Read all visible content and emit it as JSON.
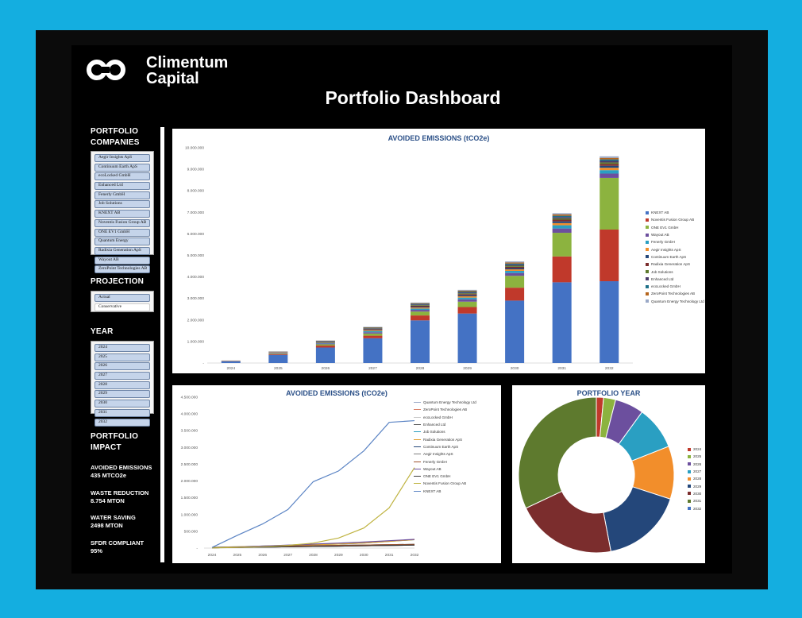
{
  "header": {
    "brand_line1": "Climentum",
    "brand_line2": "Capital",
    "title": "Portfolio Dashboard"
  },
  "sidebar": {
    "companies_title_1": "PORTFOLIO",
    "companies_title_2": "COMPANIES",
    "companies": [
      "Aegir Insights ApS",
      "Continuum Earth ApS",
      "ecoLocked GmbH",
      "Enhanced Ltd",
      "Fenerly GmbH",
      "Job Solutions",
      "KNEXT AB",
      "Noventis Fusion Group AB",
      "ONE EV1 GmbH",
      "Quantum Energy",
      "Radixia Generation ApS",
      "Wayout AB",
      "ZeroPoint Technologies AB"
    ],
    "projection_title": "PROJECTION",
    "projection_options": [
      {
        "label": "Actual",
        "selected": true
      },
      {
        "label": "Conservative",
        "selected": false
      }
    ],
    "year_title": "YEAR",
    "years": [
      "2024",
      "2025",
      "2026",
      "2027",
      "2028",
      "2029",
      "2030",
      "2031",
      "2032"
    ],
    "impact_title_1": "PORTFOLIO",
    "impact_title_2": "IMPACT",
    "metrics": [
      {
        "label": "AVOIDED EMISSIONS",
        "value": "435 MTCO2e"
      },
      {
        "label": "WASTE REDUCTION",
        "value": "8.754 MTON"
      },
      {
        "label": "WATER SAVING",
        "value": "2498 MTON"
      },
      {
        "label": "SFDR COMPLIANT",
        "value": "95%"
      }
    ]
  },
  "chart_data": [
    {
      "type": "bar",
      "stacked": true,
      "title": "AVOIDED EMISSIONS (tCO2e)",
      "categories": [
        "2024",
        "2025",
        "2026",
        "2027",
        "2028",
        "2029",
        "2030",
        "2031",
        "2032"
      ],
      "y_ticks": [
        "-",
        "1.000.000",
        "2.000.000",
        "3.000.000",
        "4.000.000",
        "5.000.000",
        "6.000.000",
        "7.000.000",
        "8.000.000",
        "9.000.000",
        "10.000.000"
      ],
      "ylim": [
        0,
        10000000
      ],
      "legend_position": "right",
      "series": [
        {
          "name": "KNEXT AB",
          "color": "#4472c4",
          "values": [
            80000,
            380000,
            720000,
            1150000,
            1980000,
            2300000,
            2900000,
            3750000,
            3800000
          ]
        },
        {
          "name": "Noventis Fusion Group AB",
          "color": "#c0392b",
          "values": [
            10000,
            40000,
            90000,
            120000,
            230000,
            300000,
            600000,
            1200000,
            2400000
          ]
        },
        {
          "name": "ONE EV1 GmbH",
          "color": "#8cb33f",
          "values": [
            5000,
            30000,
            60000,
            100000,
            180000,
            250000,
            550000,
            1100000,
            2400000
          ]
        },
        {
          "name": "Wayout AB",
          "color": "#6c4f9e",
          "values": [
            5000,
            20000,
            40000,
            60000,
            80000,
            110000,
            130000,
            200000,
            200000
          ]
        },
        {
          "name": "Fenerly GmbH",
          "color": "#2a9fc2",
          "values": [
            3000,
            15000,
            30000,
            50000,
            60000,
            80000,
            100000,
            150000,
            160000
          ]
        },
        {
          "name": "Aegir Insights ApS",
          "color": "#f28e2b",
          "values": [
            3000,
            10000,
            20000,
            40000,
            50000,
            60000,
            70000,
            100000,
            110000
          ]
        },
        {
          "name": "Continuum Earth ApS",
          "color": "#24477a",
          "values": [
            2000,
            10000,
            20000,
            30000,
            40000,
            50000,
            60000,
            80000,
            90000
          ]
        },
        {
          "name": "Radixia Generation ApS",
          "color": "#7b2d2d",
          "values": [
            2000,
            10000,
            20000,
            30000,
            40000,
            50000,
            60000,
            80000,
            90000
          ]
        },
        {
          "name": "Job Solutions",
          "color": "#5e7a2e",
          "values": [
            1000,
            5000,
            10000,
            20000,
            30000,
            40000,
            50000,
            60000,
            70000
          ]
        },
        {
          "name": "Enhanced Ltd",
          "color": "#4b3a6a",
          "values": [
            1000,
            5000,
            10000,
            20000,
            30000,
            40000,
            50000,
            60000,
            70000
          ]
        },
        {
          "name": "ecoLocked GmbH",
          "color": "#1e7088",
          "values": [
            1000,
            5000,
            10000,
            20000,
            30000,
            40000,
            50000,
            60000,
            70000
          ]
        },
        {
          "name": "ZeroPoint Technologies AB",
          "color": "#b5651d",
          "values": [
            1000,
            5000,
            10000,
            20000,
            30000,
            40000,
            50000,
            60000,
            70000
          ]
        },
        {
          "name": "Quantum Energy Technology Ltd",
          "color": "#9aa9c7",
          "values": [
            1000,
            5000,
            10000,
            20000,
            30000,
            40000,
            50000,
            60000,
            70000
          ]
        }
      ]
    },
    {
      "type": "line",
      "title": "AVOIDED EMISSIONS (tCO2e)",
      "categories": [
        "2024",
        "2025",
        "2026",
        "2027",
        "2028",
        "2029",
        "2030",
        "2031",
        "2032"
      ],
      "y_ticks": [
        "-",
        "500.000",
        "1.000.000",
        "1.500.000",
        "2.000.000",
        "2.500.000",
        "3.000.000",
        "3.500.000",
        "4.000.000",
        "4.500.000"
      ],
      "ylim": [
        0,
        4500000
      ],
      "legend_position": "top-right",
      "series": [
        {
          "name": "Quantum Energy Technology Ltd",
          "color": "#9aa9c7",
          "values": [
            10000,
            20000,
            30000,
            40000,
            50000,
            60000,
            70000,
            80000,
            90000
          ]
        },
        {
          "name": "ZeroPoint Technologies AB",
          "color": "#d9826a",
          "values": [
            10000,
            20000,
            30000,
            40000,
            50000,
            60000,
            70000,
            80000,
            90000
          ]
        },
        {
          "name": "ecoLocked GmbH",
          "color": "#c9c9c9",
          "values": [
            10000,
            20000,
            30000,
            40000,
            50000,
            60000,
            70000,
            80000,
            90000
          ]
        },
        {
          "name": "Enhanced Ltd",
          "color": "#5b5b5b",
          "values": [
            10000,
            20000,
            30000,
            40000,
            50000,
            60000,
            70000,
            80000,
            90000
          ]
        },
        {
          "name": "Job Solutions",
          "color": "#2a9fc2",
          "values": [
            20000,
            40000,
            60000,
            80000,
            100000,
            120000,
            150000,
            200000,
            250000
          ]
        },
        {
          "name": "Radixia Generation ApS",
          "color": "#e0a030",
          "values": [
            20000,
            40000,
            60000,
            80000,
            100000,
            120000,
            150000,
            200000,
            250000
          ]
        },
        {
          "name": "Continuum Earth ApS",
          "color": "#24477a",
          "values": [
            10000,
            20000,
            40000,
            60000,
            70000,
            80000,
            90000,
            100000,
            110000
          ]
        },
        {
          "name": "Aegir Insights ApS",
          "color": "#7f7f7f",
          "values": [
            10000,
            20000,
            40000,
            60000,
            70000,
            80000,
            90000,
            100000,
            110000
          ]
        },
        {
          "name": "Fenerly GmbH",
          "color": "#a0522d",
          "values": [
            10000,
            20000,
            40000,
            60000,
            70000,
            80000,
            90000,
            100000,
            110000
          ]
        },
        {
          "name": "Wayout AB",
          "color": "#6c4f9e",
          "values": [
            10000,
            30000,
            60000,
            90000,
            120000,
            150000,
            180000,
            220000,
            260000
          ]
        },
        {
          "name": "ONE EV1 GmbH",
          "color": "#3d3d3d",
          "values": [
            10000,
            20000,
            30000,
            40000,
            50000,
            60000,
            70000,
            80000,
            90000
          ]
        },
        {
          "name": "Noventis Fusion Group AB",
          "color": "#bfb340",
          "values": [
            5000,
            20000,
            40000,
            80000,
            150000,
            300000,
            600000,
            1200000,
            2400000
          ]
        },
        {
          "name": "KNEXT AB",
          "color": "#5b84c4",
          "values": [
            20000,
            380000,
            720000,
            1150000,
            1980000,
            2300000,
            2900000,
            3750000,
            3800000
          ]
        }
      ]
    },
    {
      "type": "pie",
      "donut": true,
      "title": "PORTFOLIO YEAR",
      "legend_position": "right",
      "labels": [
        "2024",
        "2025",
        "2026",
        "2027",
        "2028",
        "2029",
        "2030",
        "2031",
        "2032"
      ],
      "colors": [
        "#c0392b",
        "#8cb33f",
        "#6c4f9e",
        "#2a9fc2",
        "#f28e2b",
        "#24477a",
        "#7b2d2d",
        "#5e7a2e",
        "#4472c4"
      ],
      "values": [
        1.5,
        2.5,
        6,
        9,
        11,
        17,
        21,
        32,
        0
      ]
    }
  ]
}
